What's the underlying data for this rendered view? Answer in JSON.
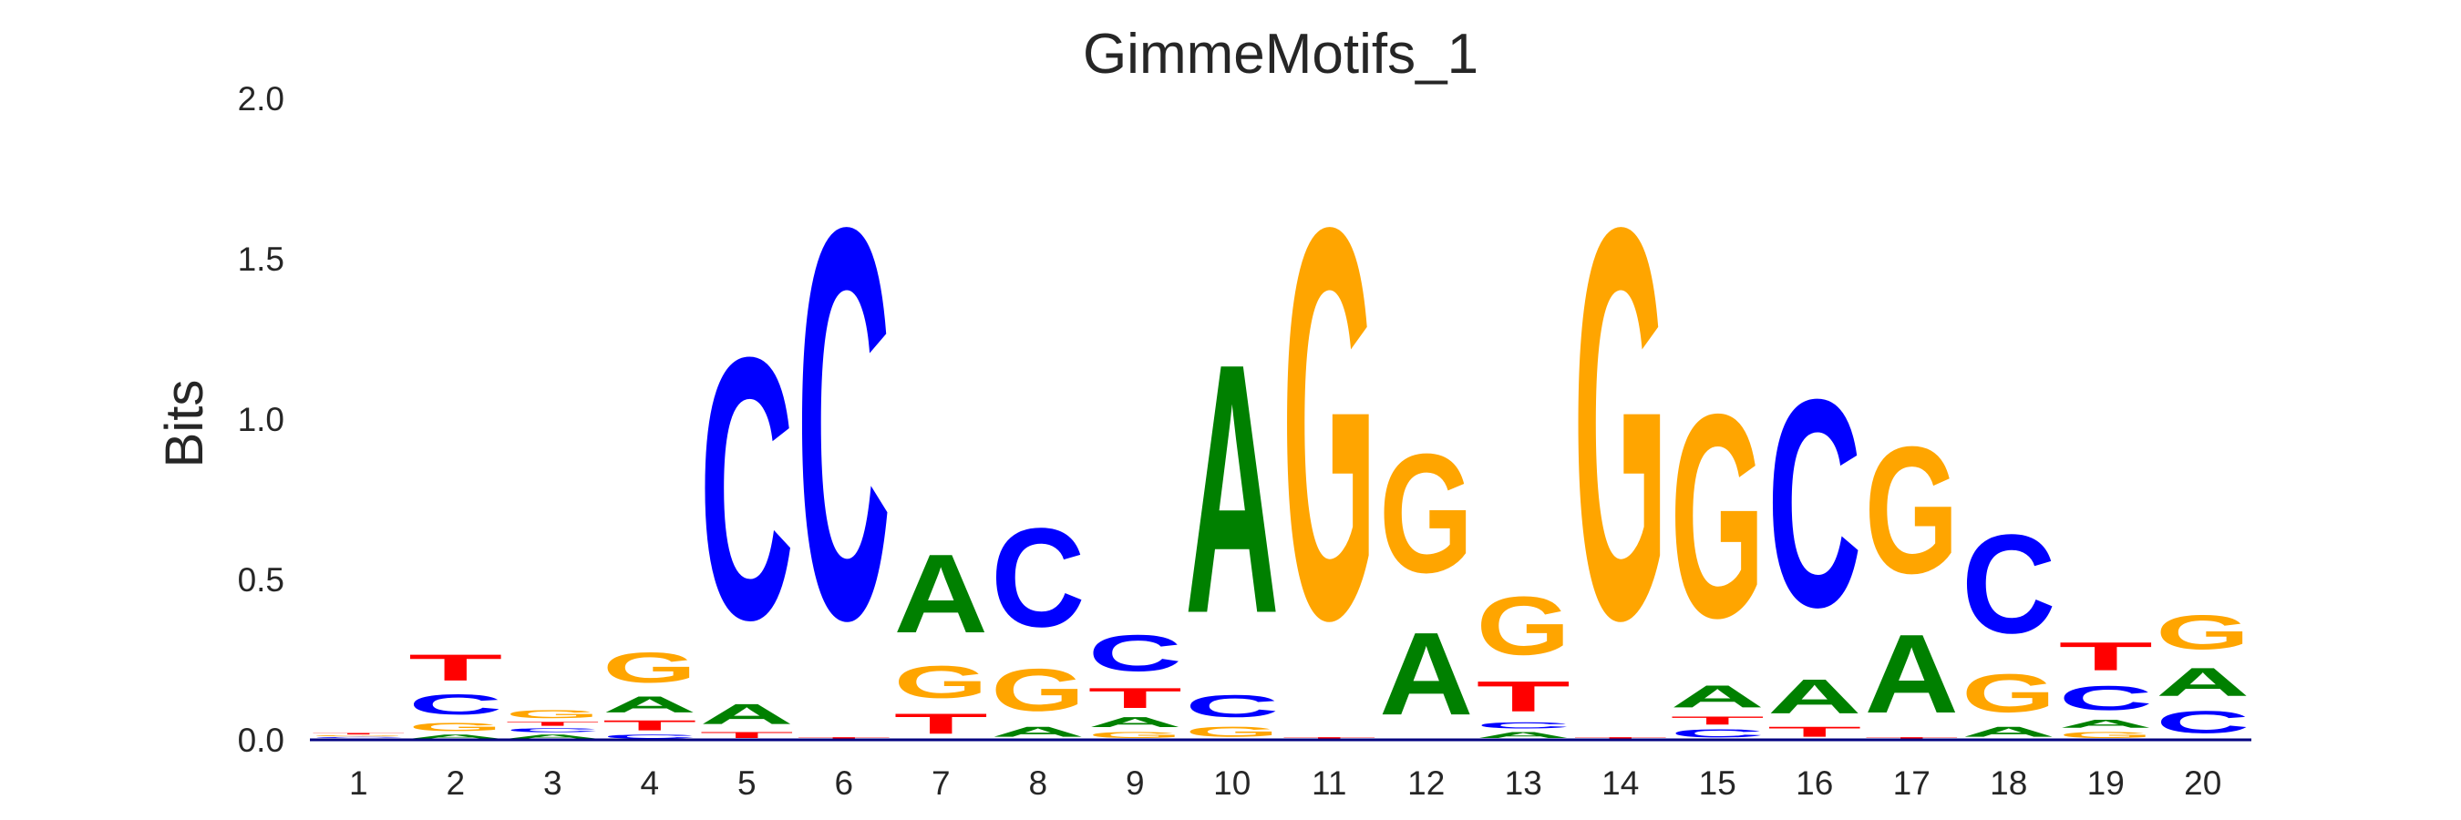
{
  "chart_data": {
    "type": "sequence-logo",
    "title": "GimmeMotifs_1",
    "ylabel": "Bits",
    "xlabel": "",
    "ylim": [
      0,
      2.0
    ],
    "yticks": [
      "0.0",
      "0.5",
      "1.0",
      "1.5",
      "2.0"
    ],
    "ytick_values": [
      0,
      0.5,
      1.0,
      1.5,
      2.0
    ],
    "categories": [
      "1",
      "2",
      "3",
      "4",
      "5",
      "6",
      "7",
      "8",
      "9",
      "10",
      "11",
      "12",
      "13",
      "14",
      "15",
      "16",
      "17",
      "18",
      "19",
      "20"
    ],
    "grid": false,
    "colors": {
      "A": "#008000",
      "C": "#0000ff",
      "G": "#ffa500",
      "T": "#ff0000"
    },
    "positions": [
      [
        [
          "A",
          0.005
        ],
        [
          "C",
          0.005
        ],
        [
          "G",
          0.005
        ],
        [
          "T",
          0.008
        ]
      ],
      [
        [
          "A",
          0.02
        ],
        [
          "G",
          0.04
        ],
        [
          "C",
          0.1
        ],
        [
          "T",
          0.13
        ]
      ],
      [
        [
          "A",
          0.02
        ],
        [
          "C",
          0.02
        ],
        [
          "T",
          0.02
        ],
        [
          "G",
          0.04
        ]
      ],
      [
        [
          "C",
          0.02
        ],
        [
          "T",
          0.05
        ],
        [
          "A",
          0.08
        ],
        [
          "G",
          0.15
        ]
      ],
      [
        [
          "T",
          0.03
        ],
        [
          "A",
          0.1
        ],
        [
          "C",
          1.3
        ]
      ],
      [
        [
          "T",
          0.01
        ],
        [
          "C",
          1.94
        ]
      ],
      [
        [
          "T",
          0.1
        ],
        [
          "G",
          0.16
        ],
        [
          "A",
          0.39
        ]
      ],
      [
        [
          "A",
          0.05
        ],
        [
          "G",
          0.21
        ],
        [
          "C",
          0.49
        ]
      ],
      [
        [
          "G",
          0.03
        ],
        [
          "A",
          0.05
        ],
        [
          "T",
          0.1
        ],
        [
          "C",
          0.18
        ]
      ],
      [
        [
          "G",
          0.05
        ],
        [
          "C",
          0.11
        ],
        [
          "A",
          1.24
        ]
      ],
      [
        [
          "T",
          0.01
        ],
        [
          "G",
          1.94
        ]
      ],
      [
        [
          "A",
          0.41
        ],
        [
          "G",
          0.59
        ]
      ],
      [
        [
          "A",
          0.03
        ],
        [
          "C",
          0.03
        ],
        [
          "T",
          0.15
        ],
        [
          "G",
          0.29
        ]
      ],
      [
        [
          "T",
          0.01
        ],
        [
          "G",
          1.94
        ]
      ],
      [
        [
          "C",
          0.04
        ],
        [
          "T",
          0.04
        ],
        [
          "A",
          0.11
        ],
        [
          "G",
          1.01
        ]
      ],
      [
        [
          "T",
          0.05
        ],
        [
          "A",
          0.17
        ],
        [
          "C",
          1.03
        ]
      ],
      [
        [
          "T",
          0.01
        ],
        [
          "A",
          0.39
        ],
        [
          "G",
          0.63
        ]
      ],
      [
        [
          "A",
          0.05
        ],
        [
          "G",
          0.19
        ],
        [
          "C",
          0.49
        ]
      ],
      [
        [
          "G",
          0.03
        ],
        [
          "A",
          0.04
        ],
        [
          "C",
          0.12
        ],
        [
          "T",
          0.14
        ]
      ],
      [
        [
          "C",
          0.11
        ],
        [
          "A",
          0.14
        ],
        [
          "G",
          0.17
        ]
      ]
    ]
  }
}
